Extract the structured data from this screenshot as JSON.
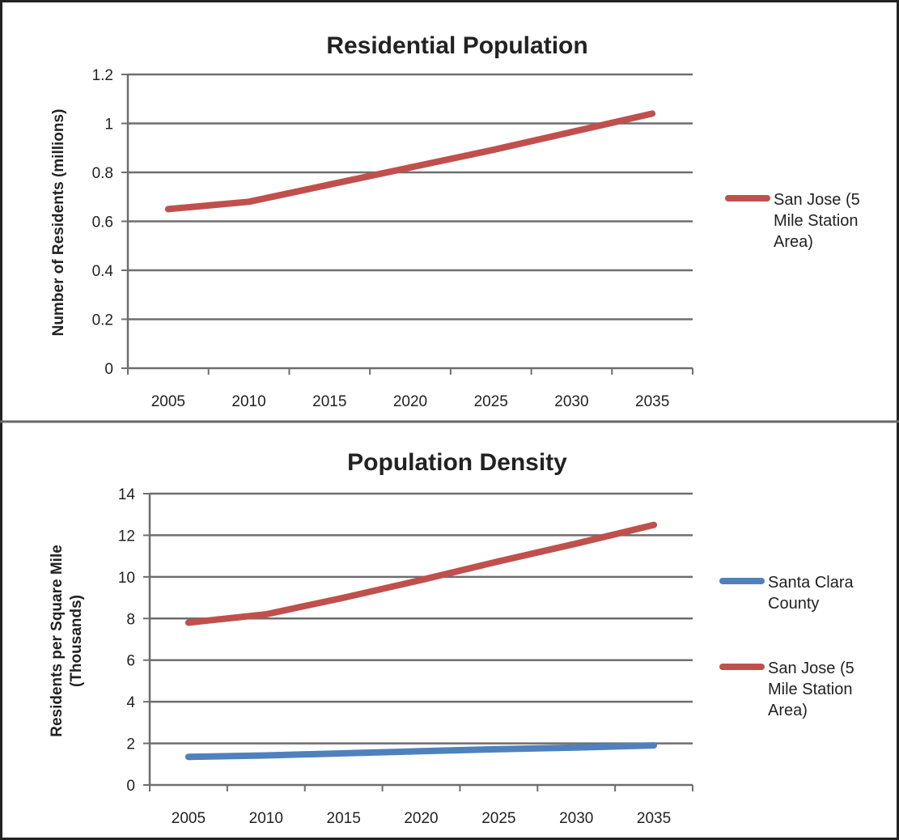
{
  "chart_data": [
    {
      "type": "line",
      "title": "Residential Population",
      "xlabel": "",
      "ylabel": "Number of Residents (millions)",
      "categories": [
        "2005",
        "2010",
        "2015",
        "2020",
        "2025",
        "2030",
        "2035"
      ],
      "yticks": [
        "0",
        "0.2",
        "0.4",
        "0.6",
        "0.8",
        "1",
        "1.2"
      ],
      "ylim": [
        0,
        1.2
      ],
      "grid": true,
      "legend_position": "right",
      "series": [
        {
          "name": "San Jose (5 Mile Station Area)",
          "legend_lines": [
            "San Jose (5",
            "Mile Station",
            "Area)"
          ],
          "color": "#c0504d",
          "values": [
            0.65,
            0.68,
            0.75,
            0.82,
            0.89,
            0.965,
            1.04
          ]
        }
      ]
    },
    {
      "type": "line",
      "title": "Population Density",
      "xlabel": "",
      "ylabel_lines": [
        "Residents per Square Mile",
        "(Thousands)"
      ],
      "categories": [
        "2005",
        "2010",
        "2015",
        "2020",
        "2025",
        "2030",
        "2035"
      ],
      "yticks": [
        "0",
        "2",
        "4",
        "6",
        "8",
        "10",
        "12",
        "14"
      ],
      "ylim": [
        0,
        14
      ],
      "grid": true,
      "legend_position": "right",
      "series": [
        {
          "name": "Santa Clara County",
          "legend_lines": [
            "Santa Clara",
            "County"
          ],
          "color": "#4f81bd",
          "values": [
            1.35,
            1.42,
            1.52,
            1.62,
            1.72,
            1.8,
            1.9
          ]
        },
        {
          "name": "San Jose (5 Mile Station Area)",
          "legend_lines": [
            "San Jose (5",
            "Mile Station",
            "Area)"
          ],
          "color": "#c0504d",
          "values": [
            7.8,
            8.2,
            9.0,
            9.85,
            10.75,
            11.6,
            12.5
          ]
        }
      ]
    }
  ]
}
